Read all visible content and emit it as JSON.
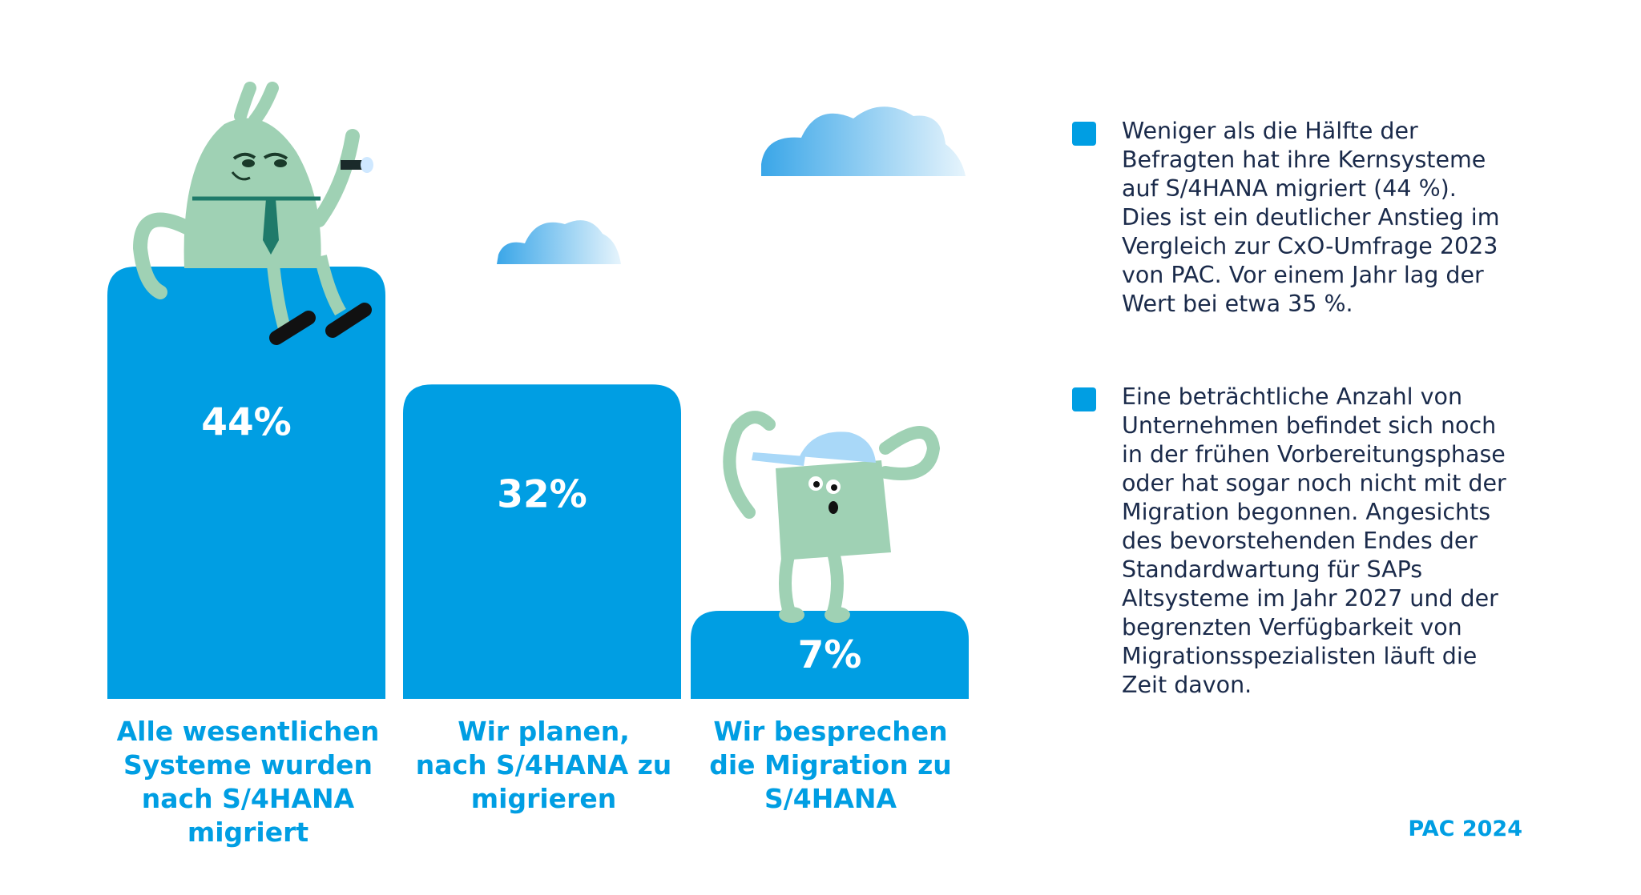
{
  "colors": {
    "accent": "#009ee3",
    "text": "#1a2a4a",
    "character": "#9fd1b4"
  },
  "chart_data": {
    "type": "bar",
    "categories": [
      "Alle wesentlichen Systeme wurden nach S/4HANA migriert",
      "Wir planen, nach S/4HANA zu migrieren",
      "Wir besprechen die Migration zu S/4HANA"
    ],
    "values": [
      44,
      32,
      7
    ],
    "value_labels": [
      "44%",
      "32%",
      "7%"
    ],
    "ylim": [
      0,
      44
    ],
    "grid": false,
    "legend": "none"
  },
  "labels": {
    "cat1": [
      "Alle wesentlichen",
      "Systeme wurden",
      "nach S/4HANA",
      "migriert"
    ],
    "cat2": [
      "Wir planen,",
      "nach S/4HANA zu",
      "migrieren"
    ],
    "cat3": [
      "Wir besprechen",
      "die Migration zu",
      "S/4HANA"
    ]
  },
  "bullets": [
    [
      "Weniger als die Hälfte der",
      "Befragten hat ihre Kernsysteme",
      "auf S/4HANA migriert (44 %).",
      "Dies ist ein deutlicher Anstieg im",
      "Vergleich zur CxO-Umfrage 2023",
      "von PAC. Vor einem Jahr lag der",
      "Wert bei etwa 35 %."
    ],
    [
      "Eine beträchtliche Anzahl von",
      "Unternehmen befindet sich noch",
      "in der frühen Vorbereitungsphase",
      "oder hat sogar noch nicht mit der",
      "Migration begonnen. Angesichts",
      "des bevorstehenden Endes der",
      "Standardwartung für SAPs",
      "Altsysteme im Jahr 2027 und der",
      "begrenzten Verfügbarkeit von",
      "Migrationsspezialisten läuft die",
      "Zeit davon."
    ]
  ],
  "source": "PAC 2024"
}
